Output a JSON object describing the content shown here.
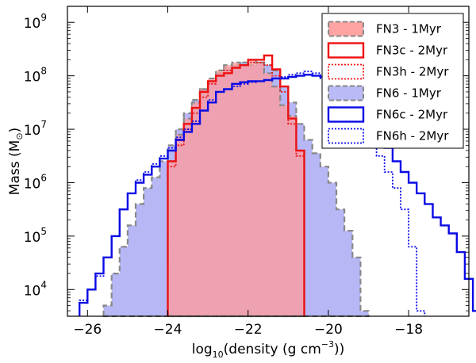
{
  "chart_data": {
    "type": "histogram",
    "xlabel_base": "log",
    "xlabel_sub": "10",
    "xlabel_mid": "(density (g cm",
    "xlabel_sup": "−3",
    "xlabel_end": "))",
    "ylabel_main": "Mass (M",
    "ylabel_sub": "⊙",
    "ylabel_end": ")",
    "xlim": [
      -26.5,
      -16.5
    ],
    "ylim_log10": [
      3.5,
      9.3
    ],
    "y_scale": "log",
    "x_ticks": [
      {
        "value": -26,
        "label": "−26"
      },
      {
        "value": -24,
        "label": "−24"
      },
      {
        "value": -22,
        "label": "−22"
      },
      {
        "value": -20,
        "label": "−20"
      },
      {
        "value": -18,
        "label": "−18"
      }
    ],
    "y_ticks": [
      {
        "exp": 4,
        "base": "10",
        "sup": "4"
      },
      {
        "exp": 5,
        "base": "10",
        "sup": "5"
      },
      {
        "exp": 6,
        "base": "10",
        "sup": "6"
      },
      {
        "exp": 7,
        "base": "10",
        "sup": "7"
      },
      {
        "exp": 8,
        "base": "10",
        "sup": "8"
      },
      {
        "exp": 9,
        "base": "10",
        "sup": "9"
      }
    ],
    "legend_position": "top-right",
    "bin_width": 0.2,
    "series": [
      {
        "name": "FN3 - 1Myr",
        "style": "filled",
        "color": "#ff9999",
        "edge": "#888888",
        "x_start": -24.0,
        "log10_values": [
          6.4,
          6.9,
          7.2,
          7.5,
          7.75,
          7.95,
          8.1,
          8.2,
          8.25,
          8.2,
          8.3,
          8.25,
          8.05,
          7.8,
          7.45,
          7.25,
          6.6
        ]
      },
      {
        "name": "FN3c - 2Myr",
        "style": "solid",
        "color": "#ee1111",
        "x_start": -24.0,
        "log10_values": [
          6.4,
          6.8,
          7.1,
          7.4,
          7.7,
          7.9,
          8.0,
          8.05,
          8.15,
          8.2,
          8.3,
          8.3,
          8.38,
          8.12,
          7.8,
          7.2,
          6.6
        ]
      },
      {
        "name": "FN3h - 2Myr",
        "style": "dotted",
        "color": "#ee1111",
        "x_start": -24.0,
        "log10_values": [
          6.3,
          6.7,
          7.0,
          7.3,
          7.6,
          7.85,
          8.0,
          8.1,
          8.15,
          8.2,
          8.25,
          8.25,
          8.2,
          8.0,
          7.7,
          7.1,
          6.5
        ]
      },
      {
        "name": "FN6 - 1Myr",
        "style": "filled",
        "color": "#b3b3f5",
        "edge": "#888888",
        "x_start": -25.6,
        "log10_values": [
          3.7,
          4.3,
          4.8,
          5.2,
          5.6,
          5.9,
          6.1,
          6.4,
          6.7,
          7.0,
          7.3,
          7.55,
          7.75,
          7.9,
          8.05,
          8.15,
          8.2,
          8.25,
          8.2,
          8.25,
          8.2,
          8.1,
          7.8,
          7.5,
          7.1,
          6.8,
          6.55,
          6.3,
          6.0,
          5.5,
          5.1,
          4.6,
          3.6
        ]
      },
      {
        "name": "FN6c - 2Myr",
        "style": "solid",
        "color": "#0a0ae6",
        "x_start": -26.2,
        "log10_values": [
          3.75,
          4.0,
          4.3,
          4.6,
          5.0,
          5.5,
          5.8,
          6.0,
          6.15,
          6.3,
          6.45,
          6.6,
          6.8,
          6.95,
          7.1,
          7.35,
          7.5,
          7.7,
          7.75,
          7.85,
          7.88,
          7.9,
          7.9,
          7.92,
          7.95,
          7.95,
          7.98,
          8.0,
          8.02,
          8.0,
          7.98,
          7.9,
          7.8,
          7.7,
          7.5,
          7.3,
          7.1,
          6.8,
          6.65,
          6.4,
          6.2,
          6.0,
          5.8,
          5.6,
          5.35,
          5.2,
          5.05,
          4.7,
          4.2,
          3.6
        ]
      },
      {
        "name": "FN6h - 2Myr",
        "style": "dotted",
        "color": "#0a0ae6",
        "x_start": -26.2,
        "log10_values": [
          3.8,
          4.0,
          4.25,
          4.6,
          5.0,
          5.5,
          5.8,
          6.05,
          6.2,
          6.35,
          6.5,
          6.65,
          6.85,
          7.0,
          7.15,
          7.35,
          7.55,
          7.7,
          7.75,
          7.8,
          7.85,
          7.88,
          7.9,
          7.92,
          7.95,
          7.98,
          8.02,
          8.05,
          8.08,
          8.05,
          7.95,
          7.85,
          7.7,
          7.5,
          7.3,
          7.05,
          6.8,
          6.5,
          6.2,
          5.9,
          5.5,
          4.8,
          3.6
        ]
      }
    ]
  }
}
